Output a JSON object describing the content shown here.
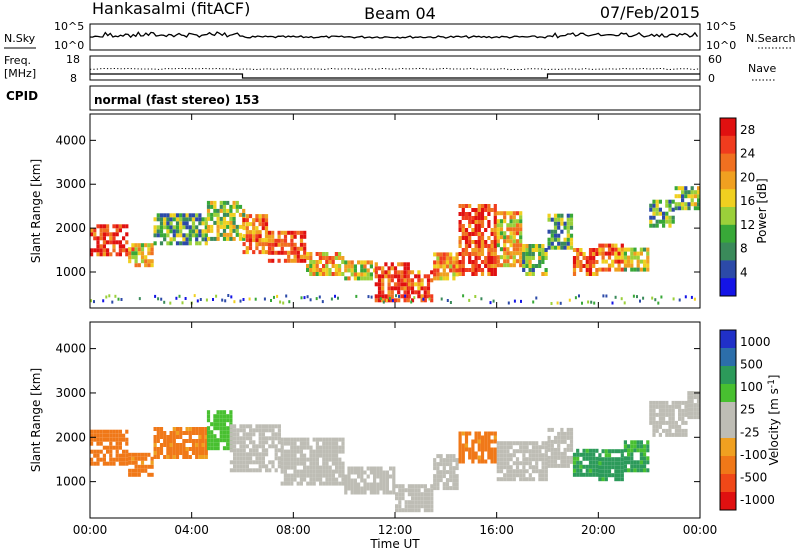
{
  "header": {
    "station": "Hankasalmi (fitACF)",
    "beam": "Beam 04",
    "date": "07/Feb/2015"
  },
  "top_panels": {
    "nsky_label": "N.Sky",
    "nsky_tick_top": "10^5",
    "nsky_tick_bottom": "10^0",
    "nsearch_label": "N.Search",
    "freq_label_line1": "Freq.",
    "freq_label_line2": "[MHz]",
    "freq_tick_top": "18",
    "freq_tick_bottom": "8",
    "nave_tick_top": "60",
    "nave_tick_bottom": "0",
    "nave_label": "Nave",
    "cpid_label": "CPID",
    "cpid_text": "normal (fast stereo) 153"
  },
  "colors": {
    "power_scale": [
      "#1414e6",
      "#2c4aa8",
      "#3a8a5a",
      "#38a838",
      "#9bd03a",
      "#f0d020",
      "#f0a020",
      "#f07020",
      "#f03c1e",
      "#e01010"
    ],
    "velocity_scale": [
      "#e01010",
      "#f04818",
      "#f07818",
      "#f0a020",
      "#bebdb5",
      "#bebdb5",
      "#48c030",
      "#2c9a5a",
      "#2c6eaa",
      "#2030c8"
    ],
    "ground_scatter": "#bebdb5"
  },
  "chart_data": [
    {
      "type": "heatmap",
      "name": "power",
      "ylabel": "Slant Range [km]",
      "xlabel": "",
      "ylim": [
        180,
        4600
      ],
      "xlim_hours": [
        0,
        24
      ],
      "yticks": [
        "1000",
        "2000",
        "3000",
        "4000"
      ],
      "ytick_values": [
        1000,
        2000,
        3000,
        4000
      ],
      "colorbar_label": "Power [dB]",
      "colorbar_ticks": [
        "4",
        "8",
        "12",
        "16",
        "20",
        "24",
        "28"
      ],
      "value_range": [
        0,
        30
      ],
      "bands": [
        [
          0,
          1450,
          2150,
          26
        ],
        [
          1.5,
          1200,
          1700,
          18
        ],
        [
          2.5,
          1700,
          2350,
          10
        ],
        [
          4.6,
          1800,
          2700,
          14
        ],
        [
          6,
          1500,
          2400,
          22
        ],
        [
          7,
          1300,
          2000,
          25
        ],
        [
          8.5,
          1000,
          1500,
          18
        ],
        [
          10,
          900,
          1300,
          16
        ],
        [
          11.2,
          400,
          1300,
          26
        ],
        [
          12.5,
          400,
          1100,
          24
        ],
        [
          13.5,
          900,
          1500,
          20
        ],
        [
          14.5,
          1000,
          2600,
          25
        ],
        [
          16,
          1200,
          2400,
          18
        ],
        [
          17,
          1000,
          1700,
          12
        ],
        [
          18,
          1600,
          2400,
          10
        ],
        [
          19,
          1000,
          1600,
          24
        ],
        [
          20,
          1100,
          1700,
          23
        ],
        [
          21,
          1100,
          1600,
          14
        ],
        [
          22,
          2100,
          2700,
          10
        ],
        [
          23,
          2500,
          3000,
          12
        ],
        [
          24,
          2600,
          3000,
          10
        ]
      ]
    },
    {
      "type": "heatmap",
      "name": "velocity",
      "ylabel": "Slant Range [km]",
      "xlabel": "Time UT",
      "ylim": [
        180,
        4600
      ],
      "xlim_hours": [
        0,
        24
      ],
      "xticks": [
        "00:00",
        "04:00",
        "08:00",
        "12:00",
        "16:00",
        "20:00",
        "00:00"
      ],
      "xtick_hours": [
        0,
        4,
        8,
        12,
        16,
        20,
        24
      ],
      "yticks": [
        "1000",
        "2000",
        "3000",
        "4000"
      ],
      "ytick_values": [
        1000,
        2000,
        3000,
        4000
      ],
      "colorbar_label": "Velocity [m s^-1]",
      "colorbar_ticks": [
        "1000",
        "500",
        "100",
        "25",
        "-25",
        "-100",
        "-500",
        "-1000"
      ],
      "scatter_blocks": [
        [
          0,
          1450,
          2200,
          -300
        ],
        [
          1.5,
          1200,
          1700,
          -200
        ],
        [
          2.5,
          1600,
          2300,
          -150
        ],
        [
          4.6,
          1800,
          2700,
          60
        ],
        [
          5.5,
          1300,
          2300,
          0
        ],
        [
          7.5,
          1000,
          2000,
          0
        ],
        [
          10,
          800,
          1400,
          0
        ],
        [
          12,
          400,
          1000,
          0
        ],
        [
          13.5,
          900,
          1700,
          0
        ],
        [
          14.5,
          1500,
          2200,
          -200
        ],
        [
          16,
          1100,
          2000,
          0
        ],
        [
          18,
          1400,
          2300,
          0
        ],
        [
          19,
          1200,
          1800,
          150
        ],
        [
          20,
          1100,
          1800,
          200
        ],
        [
          21,
          1300,
          2000,
          120
        ],
        [
          22,
          2100,
          2900,
          0
        ],
        [
          23.5,
          2500,
          3100,
          0
        ]
      ]
    }
  ]
}
